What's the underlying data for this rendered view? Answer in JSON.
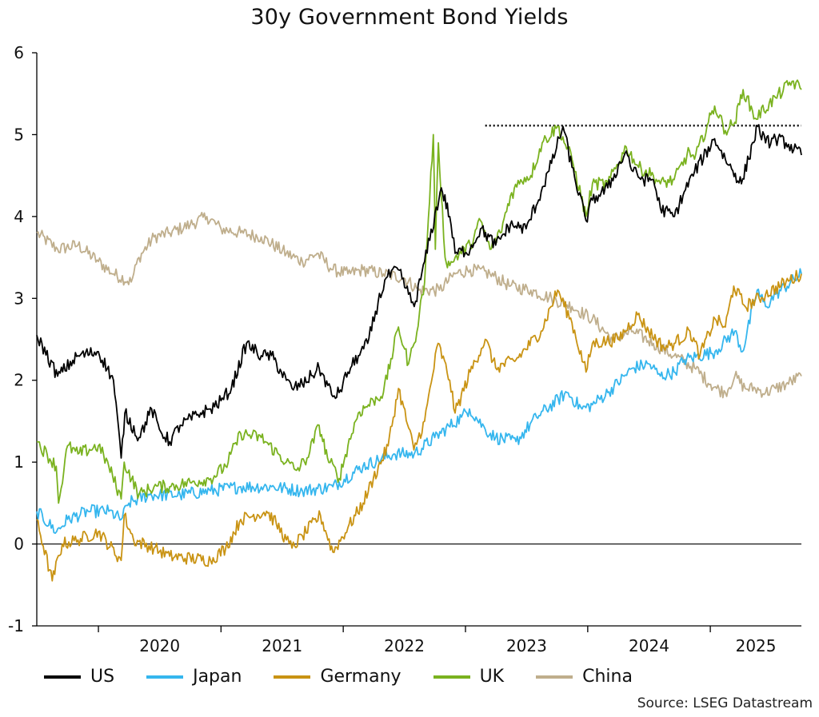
{
  "chart_data": {
    "type": "line",
    "title": "30y Government Bond Yields",
    "xlabel": "",
    "ylabel": "",
    "ylim": [
      -1,
      6
    ],
    "yticks": [
      "6",
      "5",
      "4",
      "3",
      "2",
      "1",
      "0",
      "-1"
    ],
    "xlim": [
      "2019-07-01",
      "2025-09-30"
    ],
    "xticks": [
      "2020",
      "2021",
      "2022",
      "2023",
      "2024",
      "2025"
    ],
    "grid": false,
    "legend_position": "bottom",
    "reference_lines": [
      {
        "axis": "y",
        "value": 0,
        "style": "solid",
        "color": "#000000"
      },
      {
        "axis": "y",
        "value": 5.11,
        "style": "dotted",
        "color": "#000000",
        "x_start": "2023-03-01",
        "x_end": "2025-09-30"
      }
    ],
    "series": [
      {
        "name": "US",
        "color": "#000000",
        "points": [
          [
            "2019-07-01",
            2.55
          ],
          [
            "2019-09-01",
            2.05
          ],
          [
            "2019-11-01",
            2.3
          ],
          [
            "2020-01-01",
            2.35
          ],
          [
            "2020-02-15",
            2.0
          ],
          [
            "2020-03-09",
            1.05
          ],
          [
            "2020-03-20",
            1.6
          ],
          [
            "2020-05-01",
            1.3
          ],
          [
            "2020-06-08",
            1.65
          ],
          [
            "2020-07-01",
            1.4
          ],
          [
            "2020-08-01",
            1.25
          ],
          [
            "2020-09-01",
            1.45
          ],
          [
            "2020-11-01",
            1.6
          ],
          [
            "2020-12-01",
            1.65
          ],
          [
            "2021-01-01",
            1.75
          ],
          [
            "2021-02-01",
            1.9
          ],
          [
            "2021-03-18",
            2.45
          ],
          [
            "2021-05-01",
            2.3
          ],
          [
            "2021-06-01",
            2.3
          ],
          [
            "2021-07-15",
            2.0
          ],
          [
            "2021-08-01",
            1.9
          ],
          [
            "2021-09-01",
            1.95
          ],
          [
            "2021-10-21",
            2.15
          ],
          [
            "2021-12-01",
            1.8
          ],
          [
            "2021-12-20",
            1.85
          ],
          [
            "2022-01-15",
            2.1
          ],
          [
            "2022-02-15",
            2.3
          ],
          [
            "2022-03-15",
            2.45
          ],
          [
            "2022-04-15",
            2.95
          ],
          [
            "2022-05-09",
            3.25
          ],
          [
            "2022-06-14",
            3.35
          ],
          [
            "2022-07-15",
            3.05
          ],
          [
            "2022-08-01",
            2.9
          ],
          [
            "2022-09-01",
            3.45
          ],
          [
            "2022-10-21",
            4.35
          ],
          [
            "2022-11-15",
            4.0
          ],
          [
            "2022-12-01",
            3.55
          ],
          [
            "2023-01-15",
            3.6
          ],
          [
            "2023-02-15",
            3.85
          ],
          [
            "2023-04-01",
            3.65
          ],
          [
            "2023-05-15",
            3.9
          ],
          [
            "2023-07-01",
            3.85
          ],
          [
            "2023-08-15",
            4.3
          ],
          [
            "2023-09-15",
            4.65
          ],
          [
            "2023-10-19",
            5.1
          ],
          [
            "2023-11-15",
            4.6
          ],
          [
            "2023-12-27",
            3.95
          ],
          [
            "2024-01-15",
            4.2
          ],
          [
            "2024-03-01",
            4.35
          ],
          [
            "2024-04-25",
            4.8
          ],
          [
            "2024-05-15",
            4.55
          ],
          [
            "2024-06-15",
            4.45
          ],
          [
            "2024-07-15",
            4.45
          ],
          [
            "2024-08-05",
            4.1
          ],
          [
            "2024-09-16",
            4.0
          ],
          [
            "2024-10-15",
            4.3
          ],
          [
            "2024-11-15",
            4.55
          ],
          [
            "2025-01-14",
            4.95
          ],
          [
            "2025-02-15",
            4.7
          ],
          [
            "2025-04-04",
            4.4
          ],
          [
            "2025-05-22",
            5.1
          ],
          [
            "2025-06-15",
            4.9
          ],
          [
            "2025-07-15",
            4.95
          ],
          [
            "2025-08-15",
            4.9
          ],
          [
            "2025-09-30",
            4.75
          ]
        ]
      },
      {
        "name": "Japan",
        "color": "#35b6ee",
        "points": [
          [
            "2019-07-01",
            0.4
          ],
          [
            "2019-08-29",
            0.15
          ],
          [
            "2019-10-01",
            0.3
          ],
          [
            "2019-12-01",
            0.4
          ],
          [
            "2020-02-01",
            0.4
          ],
          [
            "2020-03-09",
            0.3
          ],
          [
            "2020-04-01",
            0.5
          ],
          [
            "2020-06-01",
            0.6
          ],
          [
            "2020-09-01",
            0.6
          ],
          [
            "2020-12-01",
            0.65
          ],
          [
            "2021-03-01",
            0.7
          ],
          [
            "2021-06-01",
            0.7
          ],
          [
            "2021-09-01",
            0.65
          ],
          [
            "2021-12-01",
            0.7
          ],
          [
            "2022-03-01",
            0.95
          ],
          [
            "2022-06-01",
            1.1
          ],
          [
            "2022-08-01",
            1.1
          ],
          [
            "2022-10-01",
            1.3
          ],
          [
            "2022-12-20",
            1.55
          ],
          [
            "2023-01-13",
            1.65
          ],
          [
            "2023-03-01",
            1.4
          ],
          [
            "2023-04-01",
            1.3
          ],
          [
            "2023-06-01",
            1.25
          ],
          [
            "2023-08-01",
            1.55
          ],
          [
            "2023-10-31",
            1.85
          ],
          [
            "2023-12-15",
            1.65
          ],
          [
            "2024-01-15",
            1.7
          ],
          [
            "2024-03-01",
            1.85
          ],
          [
            "2024-05-15",
            2.15
          ],
          [
            "2024-07-01",
            2.2
          ],
          [
            "2024-08-05",
            2.05
          ],
          [
            "2024-09-15",
            2.1
          ],
          [
            "2024-10-15",
            2.25
          ],
          [
            "2025-01-15",
            2.35
          ],
          [
            "2025-03-15",
            2.6
          ],
          [
            "2025-04-07",
            2.35
          ],
          [
            "2025-05-21",
            3.1
          ],
          [
            "2025-06-15",
            2.9
          ],
          [
            "2025-07-15",
            3.05
          ],
          [
            "2025-09-30",
            3.3
          ]
        ]
      },
      {
        "name": "Germany",
        "color": "#c99313",
        "points": [
          [
            "2019-07-01",
            0.3
          ],
          [
            "2019-08-16",
            -0.45
          ],
          [
            "2019-09-15",
            0.0
          ],
          [
            "2019-11-01",
            0.05
          ],
          [
            "2020-01-01",
            0.15
          ],
          [
            "2020-03-09",
            -0.2
          ],
          [
            "2020-03-18",
            0.35
          ],
          [
            "2020-04-15",
            0.05
          ],
          [
            "2020-06-15",
            -0.05
          ],
          [
            "2020-08-01",
            -0.15
          ],
          [
            "2020-12-01",
            -0.2
          ],
          [
            "2021-01-15",
            -0.05
          ],
          [
            "2021-03-01",
            0.3
          ],
          [
            "2021-05-17",
            0.4
          ],
          [
            "2021-06-15",
            0.25
          ],
          [
            "2021-07-15",
            0.05
          ],
          [
            "2021-08-01",
            -0.05
          ],
          [
            "2021-09-01",
            0.1
          ],
          [
            "2021-10-25",
            0.35
          ],
          [
            "2021-12-01",
            -0.1
          ],
          [
            "2022-01-15",
            0.2
          ],
          [
            "2022-03-01",
            0.5
          ],
          [
            "2022-04-01",
            0.8
          ],
          [
            "2022-05-15",
            1.2
          ],
          [
            "2022-06-15",
            1.9
          ],
          [
            "2022-07-31",
            1.15
          ],
          [
            "2022-09-01",
            1.5
          ],
          [
            "2022-10-11",
            2.45
          ],
          [
            "2022-11-15",
            2.0
          ],
          [
            "2022-12-01",
            1.6
          ],
          [
            "2023-01-15",
            2.1
          ],
          [
            "2023-03-01",
            2.5
          ],
          [
            "2023-04-01",
            2.15
          ],
          [
            "2023-06-01",
            2.25
          ],
          [
            "2023-08-15",
            2.6
          ],
          [
            "2023-10-03",
            3.1
          ],
          [
            "2023-11-15",
            2.7
          ],
          [
            "2023-12-27",
            2.1
          ],
          [
            "2024-01-15",
            2.45
          ],
          [
            "2024-04-01",
            2.5
          ],
          [
            "2024-05-29",
            2.8
          ],
          [
            "2024-07-01",
            2.6
          ],
          [
            "2024-08-15",
            2.4
          ],
          [
            "2024-09-15",
            2.45
          ],
          [
            "2024-11-01",
            2.6
          ],
          [
            "2024-12-01",
            2.3
          ],
          [
            "2025-01-15",
            2.75
          ],
          [
            "2025-02-15",
            2.65
          ],
          [
            "2025-03-12",
            3.15
          ],
          [
            "2025-04-15",
            2.9
          ],
          [
            "2025-06-15",
            3.05
          ],
          [
            "2025-08-15",
            3.2
          ],
          [
            "2025-09-30",
            3.3
          ]
        ]
      },
      {
        "name": "UK",
        "color": "#7ab21f",
        "points": [
          [
            "2019-07-01",
            1.25
          ],
          [
            "2019-08-28",
            0.95
          ],
          [
            "2019-09-04",
            0.5
          ],
          [
            "2019-10-01",
            1.2
          ],
          [
            "2019-11-01",
            1.1
          ],
          [
            "2020-01-01",
            1.2
          ],
          [
            "2020-02-01",
            0.95
          ],
          [
            "2020-03-09",
            0.55
          ],
          [
            "2020-03-18",
            1.0
          ],
          [
            "2020-05-01",
            0.6
          ],
          [
            "2020-06-15",
            0.7
          ],
          [
            "2020-08-01",
            0.7
          ],
          [
            "2020-10-01",
            0.75
          ],
          [
            "2020-12-01",
            0.8
          ],
          [
            "2021-01-15",
            0.95
          ],
          [
            "2021-03-01",
            1.35
          ],
          [
            "2021-05-01",
            1.3
          ],
          [
            "2021-07-15",
            1.0
          ],
          [
            "2021-08-15",
            0.9
          ],
          [
            "2021-09-15",
            1.05
          ],
          [
            "2021-10-21",
            1.45
          ],
          [
            "2021-11-15",
            1.05
          ],
          [
            "2021-12-20",
            0.8
          ],
          [
            "2022-01-15",
            1.2
          ],
          [
            "2022-02-15",
            1.6
          ],
          [
            "2022-04-01",
            1.75
          ],
          [
            "2022-05-01",
            1.85
          ],
          [
            "2022-06-15",
            2.65
          ],
          [
            "2022-07-15",
            2.2
          ],
          [
            "2022-08-01",
            2.45
          ],
          [
            "2022-09-01",
            3.2
          ],
          [
            "2022-09-27",
            5.0
          ],
          [
            "2022-10-03",
            3.6
          ],
          [
            "2022-10-12",
            4.9
          ],
          [
            "2022-11-01",
            3.5
          ],
          [
            "2022-11-15",
            3.4
          ],
          [
            "2022-12-01",
            3.5
          ],
          [
            "2023-01-15",
            3.65
          ],
          [
            "2023-02-15",
            3.95
          ],
          [
            "2023-03-15",
            3.6
          ],
          [
            "2023-04-15",
            3.8
          ],
          [
            "2023-05-15",
            4.25
          ],
          [
            "2023-06-15",
            4.45
          ],
          [
            "2023-07-15",
            4.5
          ],
          [
            "2023-08-18",
            4.9
          ],
          [
            "2023-10-03",
            5.1
          ],
          [
            "2023-11-15",
            4.7
          ],
          [
            "2023-12-27",
            4.0
          ],
          [
            "2024-01-15",
            4.4
          ],
          [
            "2024-03-01",
            4.4
          ],
          [
            "2024-04-25",
            4.85
          ],
          [
            "2024-06-01",
            4.6
          ],
          [
            "2024-07-15",
            4.5
          ],
          [
            "2024-08-05",
            4.4
          ],
          [
            "2024-09-15",
            4.45
          ],
          [
            "2024-10-31",
            4.8
          ],
          [
            "2024-11-15",
            4.7
          ],
          [
            "2025-01-14",
            5.35
          ],
          [
            "2025-02-15",
            5.05
          ],
          [
            "2025-03-15",
            5.15
          ],
          [
            "2025-04-09",
            5.55
          ],
          [
            "2025-05-15",
            5.2
          ],
          [
            "2025-07-15",
            5.45
          ],
          [
            "2025-09-02",
            5.65
          ],
          [
            "2025-09-30",
            5.55
          ]
        ]
      },
      {
        "name": "China",
        "color": "#bfae8c",
        "points": [
          [
            "2019-07-01",
            3.8
          ],
          [
            "2019-09-01",
            3.6
          ],
          [
            "2019-11-01",
            3.65
          ],
          [
            "2020-01-01",
            3.45
          ],
          [
            "2020-02-15",
            3.3
          ],
          [
            "2020-04-08",
            3.2
          ],
          [
            "2020-05-01",
            3.5
          ],
          [
            "2020-06-15",
            3.75
          ],
          [
            "2020-08-01",
            3.8
          ],
          [
            "2020-10-01",
            3.9
          ],
          [
            "2020-11-20",
            4.0
          ],
          [
            "2021-01-01",
            3.85
          ],
          [
            "2021-03-01",
            3.8
          ],
          [
            "2021-05-01",
            3.75
          ],
          [
            "2021-07-15",
            3.55
          ],
          [
            "2021-09-01",
            3.45
          ],
          [
            "2021-10-15",
            3.55
          ],
          [
            "2021-12-01",
            3.35
          ],
          [
            "2022-01-15",
            3.3
          ],
          [
            "2022-03-01",
            3.35
          ],
          [
            "2022-05-01",
            3.3
          ],
          [
            "2022-07-01",
            3.25
          ],
          [
            "2022-08-15",
            3.1
          ],
          [
            "2022-10-15",
            3.1
          ],
          [
            "2022-12-01",
            3.3
          ],
          [
            "2023-01-15",
            3.35
          ],
          [
            "2023-03-15",
            3.3
          ],
          [
            "2023-05-15",
            3.15
          ],
          [
            "2023-07-15",
            3.1
          ],
          [
            "2023-09-15",
            3.0
          ],
          [
            "2023-11-15",
            2.9
          ],
          [
            "2024-01-15",
            2.75
          ],
          [
            "2024-03-15",
            2.5
          ],
          [
            "2024-05-15",
            2.6
          ],
          [
            "2024-07-15",
            2.45
          ],
          [
            "2024-09-15",
            2.3
          ],
          [
            "2024-11-15",
            2.15
          ],
          [
            "2025-01-02",
            1.95
          ],
          [
            "2025-01-20",
            1.9
          ],
          [
            "2025-02-15",
            1.85
          ],
          [
            "2025-03-15",
            2.05
          ],
          [
            "2025-04-15",
            1.9
          ],
          [
            "2025-05-15",
            1.9
          ],
          [
            "2025-06-15",
            1.85
          ],
          [
            "2025-07-15",
            1.9
          ],
          [
            "2025-08-15",
            1.95
          ],
          [
            "2025-09-30",
            2.05
          ]
        ]
      }
    ]
  },
  "legend": [
    {
      "label": "US",
      "color": "#000000"
    },
    {
      "label": "Japan",
      "color": "#35b6ee"
    },
    {
      "label": "Germany",
      "color": "#c99313"
    },
    {
      "label": "UK",
      "color": "#7ab21f"
    },
    {
      "label": "China",
      "color": "#bfae8c"
    }
  ],
  "source": "Source: LSEG Datastream"
}
